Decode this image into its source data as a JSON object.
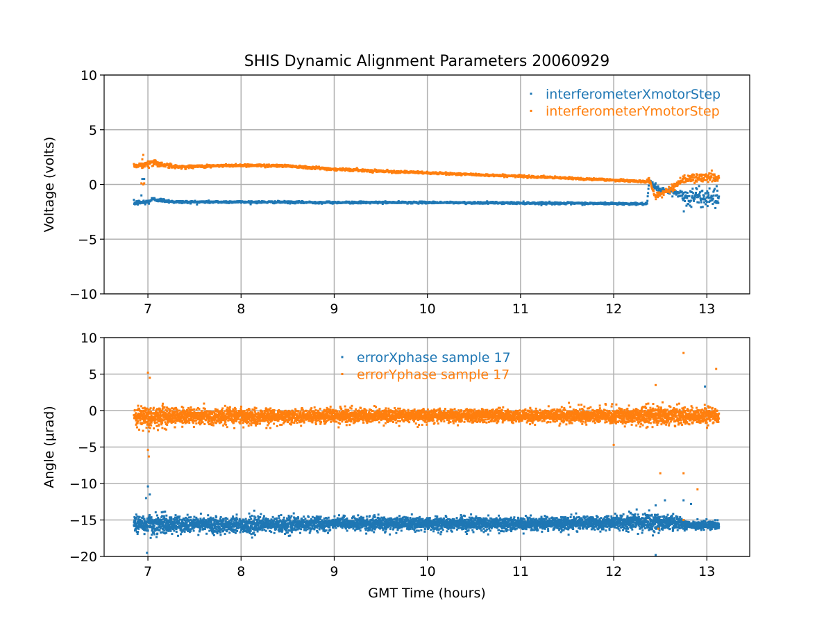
{
  "chart_data": {
    "type": "scatter",
    "title": "SHIS Dynamic Alignment Parameters 20060929",
    "xlabel": "GMT Time (hours)",
    "xlim": [
      6.53,
      13.46
    ],
    "xticks": [
      7,
      8,
      9,
      10,
      11,
      12,
      13
    ],
    "grid": true,
    "colors": {
      "blue": "#1f77b4",
      "orange": "#ff7f0e",
      "grid": "#b0b0b0"
    },
    "subplots": [
      {
        "ylabel": "Voltage (volts)",
        "ylim": [
          -10,
          10
        ],
        "yticks": [
          10,
          5,
          0,
          -5,
          -10
        ],
        "ytick_labels": [
          "10",
          "5",
          "0",
          "−5",
          "−10"
        ],
        "legend_position": "top-right",
        "series": [
          {
            "name": "interferometerXmotorStep",
            "color": "#1f77b4",
            "count": 1800,
            "trend_x_mean_spread": [
              [
                6.85,
                -1.7,
                0.18
              ],
              [
                7.0,
                -1.6,
                0.2
              ],
              [
                7.05,
                -1.35,
                0.15
              ],
              [
                7.3,
                -1.6,
                0.1
              ],
              [
                8.0,
                -1.6,
                0.08
              ],
              [
                9.0,
                -1.65,
                0.08
              ],
              [
                10.0,
                -1.65,
                0.07
              ],
              [
                11.0,
                -1.7,
                0.08
              ],
              [
                12.0,
                -1.75,
                0.08
              ],
              [
                12.36,
                -1.78,
                0.07
              ],
              [
                12.38,
                0.3,
                0.2
              ],
              [
                12.45,
                -0.3,
                0.3
              ],
              [
                12.55,
                -0.6,
                0.2
              ],
              [
                12.7,
                -0.8,
                0.3
              ],
              [
                12.75,
                -1.2,
                0.8
              ],
              [
                13.13,
                -1.1,
                0.7
              ]
            ],
            "outliers": [
              [
                6.94,
                0.5
              ],
              [
                6.96,
                0.5
              ],
              [
                6.93,
                -1.0
              ]
            ]
          },
          {
            "name": "interferometerYmotorStep",
            "color": "#ff7f0e",
            "count": 1800,
            "trend_x_mean_spread": [
              [
                6.85,
                1.7,
                0.15
              ],
              [
                7.0,
                1.85,
                0.25
              ],
              [
                7.05,
                2.0,
                0.3
              ],
              [
                7.3,
                1.6,
                0.12
              ],
              [
                8.0,
                1.75,
                0.1
              ],
              [
                8.5,
                1.7,
                0.1
              ],
              [
                9.0,
                1.4,
                0.1
              ],
              [
                10.0,
                1.05,
                0.08
              ],
              [
                11.0,
                0.75,
                0.08
              ],
              [
                12.0,
                0.4,
                0.08
              ],
              [
                12.35,
                0.25,
                0.08
              ],
              [
                12.38,
                0.4,
                0.2
              ],
              [
                12.45,
                -1.1,
                0.2
              ],
              [
                12.6,
                -0.5,
                0.2
              ],
              [
                12.75,
                0.5,
                0.35
              ],
              [
                13.13,
                0.7,
                0.35
              ]
            ],
            "outliers": [
              [
                6.93,
                0.1
              ],
              [
                6.95,
                0.0
              ],
              [
                6.96,
                0.1
              ],
              [
                6.95,
                2.7
              ],
              [
                6.94,
                2.3
              ]
            ]
          }
        ]
      },
      {
        "ylabel": "Angle (μrad)",
        "ylim": [
          -20,
          10
        ],
        "yticks": [
          10,
          5,
          0,
          -5,
          -10,
          -15,
          -20
        ],
        "ytick_labels": [
          "10",
          "5",
          "0",
          "−5",
          "−10",
          "−15",
          "−20"
        ],
        "legend_position": "top-center",
        "series": [
          {
            "name": "errorXphase sample 17",
            "color": "#1f77b4",
            "count": 5000,
            "trend_x_mean_spread": [
              [
                6.85,
                -15.5,
                0.9
              ],
              [
                7.0,
                -15.6,
                1.2
              ],
              [
                7.3,
                -15.6,
                0.9
              ],
              [
                8.2,
                -15.7,
                0.9
              ],
              [
                9.0,
                -15.5,
                0.75
              ],
              [
                10.0,
                -15.5,
                0.7
              ],
              [
                11.0,
                -15.5,
                0.7
              ],
              [
                12.0,
                -15.4,
                0.75
              ],
              [
                12.4,
                -15.3,
                1.0
              ],
              [
                12.7,
                -15.4,
                0.8
              ],
              [
                12.8,
                -15.7,
                0.4
              ],
              [
                13.13,
                -15.7,
                0.45
              ]
            ],
            "outliers": [
              [
                6.98,
                -12.0
              ],
              [
                7.0,
                -10.4
              ],
              [
                7.02,
                -11.5
              ],
              [
                6.99,
                -19.5
              ],
              [
                12.45,
                -19.8
              ],
              [
                12.45,
                -13.0
              ],
              [
                12.55,
                -12.3
              ],
              [
                12.75,
                -12.3
              ],
              [
                12.83,
                -12.8
              ],
              [
                12.9,
                -14.9
              ],
              [
                12.98,
                3.3
              ]
            ]
          },
          {
            "name": "errorYphase sample 17",
            "color": "#ff7f0e",
            "count": 5000,
            "trend_x_mean_spread": [
              [
                6.85,
                -0.8,
                0.9
              ],
              [
                7.0,
                -0.7,
                1.3
              ],
              [
                7.3,
                -0.8,
                0.9
              ],
              [
                8.2,
                -0.8,
                0.85
              ],
              [
                9.0,
                -0.7,
                0.75
              ],
              [
                10.0,
                -0.7,
                0.75
              ],
              [
                11.0,
                -0.7,
                0.75
              ],
              [
                12.0,
                -0.7,
                0.8
              ],
              [
                12.4,
                -0.7,
                1.0
              ],
              [
                12.6,
                -0.8,
                1.0
              ],
              [
                13.13,
                -0.7,
                0.85
              ]
            ],
            "outliers": [
              [
                7.0,
                5.2
              ],
              [
                7.02,
                4.5
              ],
              [
                7.01,
                -6.3
              ],
              [
                7.0,
                -5.4
              ],
              [
                12.0,
                -4.7
              ],
              [
                12.45,
                3.5
              ],
              [
                12.5,
                -8.6
              ],
              [
                12.75,
                7.9
              ],
              [
                12.75,
                -8.6
              ],
              [
                12.9,
                -10.8
              ],
              [
                13.1,
                5.7
              ],
              [
                12.48,
                -16.2
              ],
              [
                12.75,
                -15.0
              ]
            ]
          }
        ]
      }
    ]
  }
}
